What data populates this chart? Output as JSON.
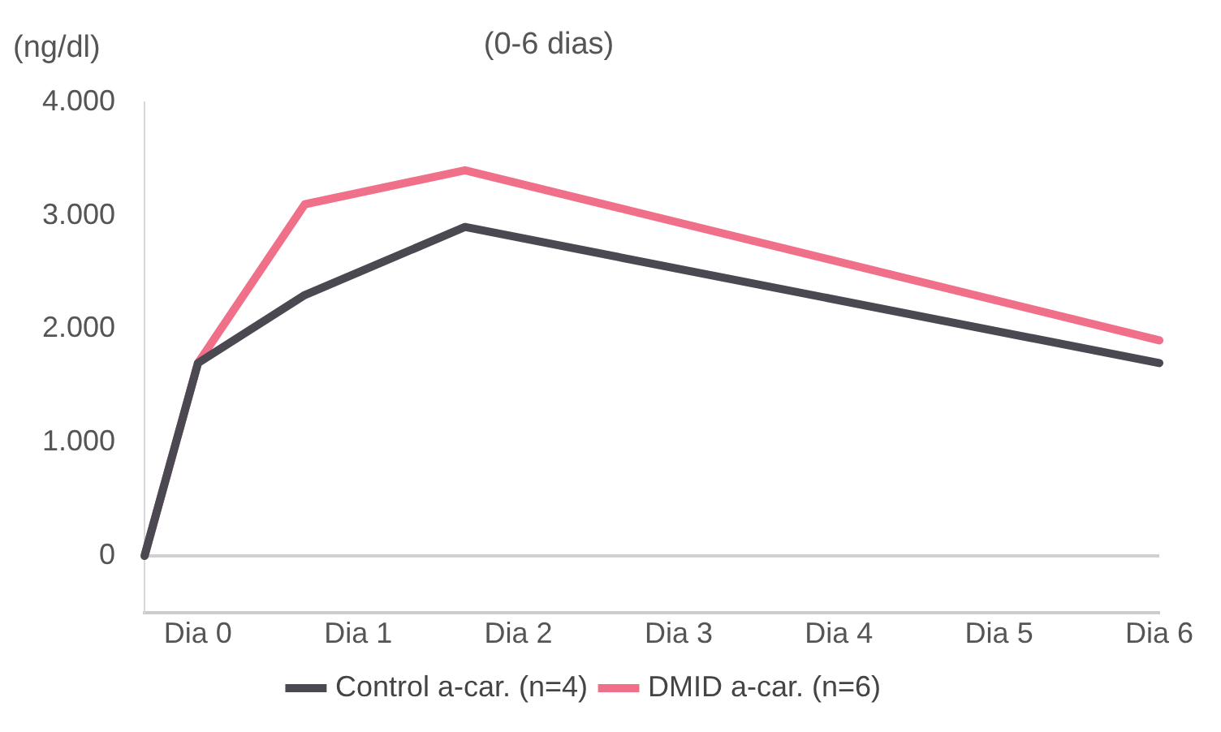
{
  "chart_data": {
    "type": "line",
    "title": "(0-6 dias)",
    "ylabel": "(ng/dl)",
    "categories": [
      null,
      "Dia 0",
      null,
      null,
      "Dia 1",
      null,
      null,
      "Dia 2",
      null,
      null,
      "Dia 3",
      null,
      null,
      "Dia 4",
      null,
      null,
      "Dia 5",
      null,
      null,
      "Dia 6"
    ],
    "ylim": [
      -500,
      4000
    ],
    "yticks": [
      {
        "value": 0,
        "label": "0"
      },
      {
        "value": 1000,
        "label": "1.000"
      },
      {
        "value": 2000,
        "label": "2.000"
      },
      {
        "value": 3000,
        "label": "3.000"
      },
      {
        "value": 4000,
        "label": "4.000"
      }
    ],
    "series": [
      {
        "name": "Control a-car. (n=4)",
        "color": "#4a4850",
        "values": [
          0,
          1700,
          null,
          2300,
          null,
          null,
          2900,
          null,
          null,
          null,
          null,
          null,
          null,
          null,
          null,
          null,
          null,
          null,
          null,
          1700
        ]
      },
      {
        "name": "DMID a-car. (n=6)",
        "color": "#f0708a",
        "values": [
          0,
          1700,
          null,
          3100,
          null,
          null,
          3400,
          null,
          null,
          null,
          null,
          null,
          null,
          null,
          null,
          null,
          null,
          null,
          null,
          1900
        ]
      }
    ],
    "ref_lines": [
      {
        "axis": "y",
        "value": 0,
        "color": "#d0d0d0"
      }
    ],
    "legend": "bottom",
    "marker": "none",
    "grid": false
  }
}
